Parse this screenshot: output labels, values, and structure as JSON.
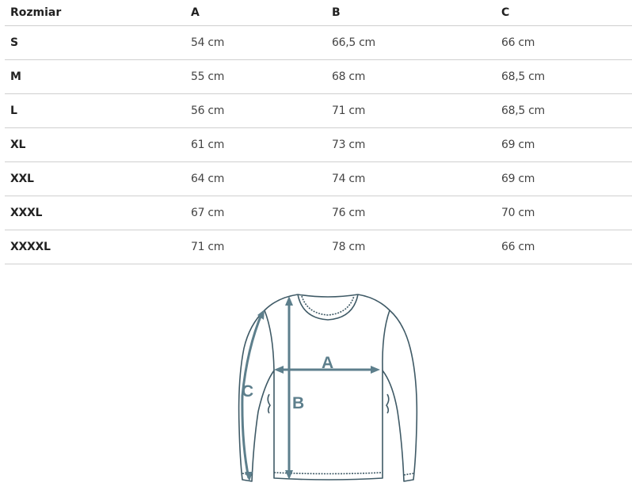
{
  "table": {
    "headers": [
      "Rozmiar",
      "A",
      "B",
      "C"
    ],
    "rows": [
      [
        "S",
        "54 cm",
        "66,5 cm",
        "66 cm"
      ],
      [
        "M",
        "55 cm",
        "68 cm",
        "68,5 cm"
      ],
      [
        "L",
        "56 cm",
        "71 cm",
        "68,5 cm"
      ],
      [
        "XL",
        "61 cm",
        "73 cm",
        "69 cm"
      ],
      [
        "XXL",
        "64 cm",
        "74 cm",
        "69 cm"
      ],
      [
        "XXXL",
        "67 cm",
        "76 cm",
        "70 cm"
      ],
      [
        "XXXXL",
        "71 cm",
        "78 cm",
        "66 cm"
      ]
    ]
  },
  "diagram": {
    "label_a": "A",
    "label_b": "B",
    "label_c": "C",
    "stroke_color": "#3f5a66",
    "arrow_color": "#5d7f8c"
  }
}
